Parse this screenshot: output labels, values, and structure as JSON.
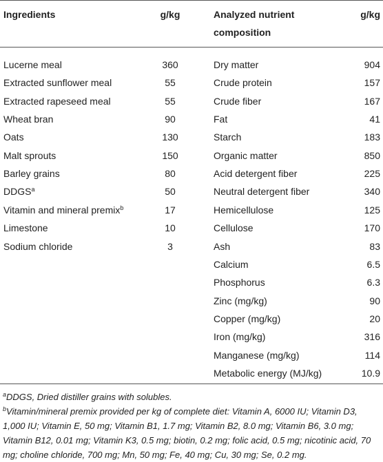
{
  "table": {
    "header": {
      "left_name": "Ingredients",
      "left_value": "g/kg",
      "right_name": "Analyzed nutrient composition",
      "right_value": "g/kg"
    },
    "left_rows": [
      {
        "name": "Lucerne meal",
        "value": 360
      },
      {
        "name": "Extracted sunflower meal",
        "value": 55
      },
      {
        "name": "Extracted rapeseed meal",
        "value": 55
      },
      {
        "name": "Wheat bran",
        "value": 90
      },
      {
        "name": "Oats",
        "value": 130
      },
      {
        "name": "Malt sprouts",
        "value": 150
      },
      {
        "name": "Barley grains",
        "value": 80
      },
      {
        "name": "DDGS",
        "sup": "a",
        "value": 50
      },
      {
        "name": "Vitamin and mineral premix",
        "sup": "b",
        "value": 17
      },
      {
        "name": "Limestone",
        "value": 10
      },
      {
        "name": "Sodium chloride",
        "value": 3
      }
    ],
    "right_rows": [
      {
        "name": "Dry matter",
        "value": 904
      },
      {
        "name": "Crude protein",
        "value": 157
      },
      {
        "name": "Crude fiber",
        "value": 167
      },
      {
        "name": "Fat",
        "value": 41
      },
      {
        "name": "Starch",
        "value": 183
      },
      {
        "name": "Organic matter",
        "value": 850
      },
      {
        "name": "Acid detergent fiber",
        "value": 225
      },
      {
        "name": "Neutral detergent fiber",
        "value": 340
      },
      {
        "name": "Hemicellulose",
        "value": 125
      },
      {
        "name": "Cellulose",
        "value": 170
      },
      {
        "name": "Ash",
        "value": 83
      },
      {
        "name": "Calcium",
        "value": 6.5
      },
      {
        "name": "Phosphorus",
        "value": 6.3
      },
      {
        "name": "Zinc (mg/kg)",
        "value": 90
      },
      {
        "name": "Copper (mg/kg)",
        "value": 20
      },
      {
        "name": "Iron (mg/kg)",
        "value": 316
      },
      {
        "name": "Manganese (mg/kg)",
        "value": 114
      },
      {
        "name": "Metabolic energy (MJ/kg)",
        "value": 10.9
      }
    ],
    "footnotes": [
      {
        "sup": "a",
        "text": "DDGS, Dried distiller grains with solubles."
      },
      {
        "sup": "b",
        "text": "Vitamin/mineral premix provided per kg of complete diet: Vitamin A, 6000 IU; Vitamin D3, 1,000 IU; Vitamin E, 50 mg; Vitamin B1, 1.7 mg; Vitamin B2, 8.0 mg; Vitamin B6, 3.0 mg; Vitamin B12, 0.01 mg; Vitamin K3, 0.5 mg; biotin, 0.2 mg; folic acid, 0.5 mg; nicotinic acid, 70 mg; choline chloride, 700 mg; Mn, 50 mg; Fe, 40 mg; Cu, 30 mg; Se, 0.2 mg."
      }
    ]
  }
}
